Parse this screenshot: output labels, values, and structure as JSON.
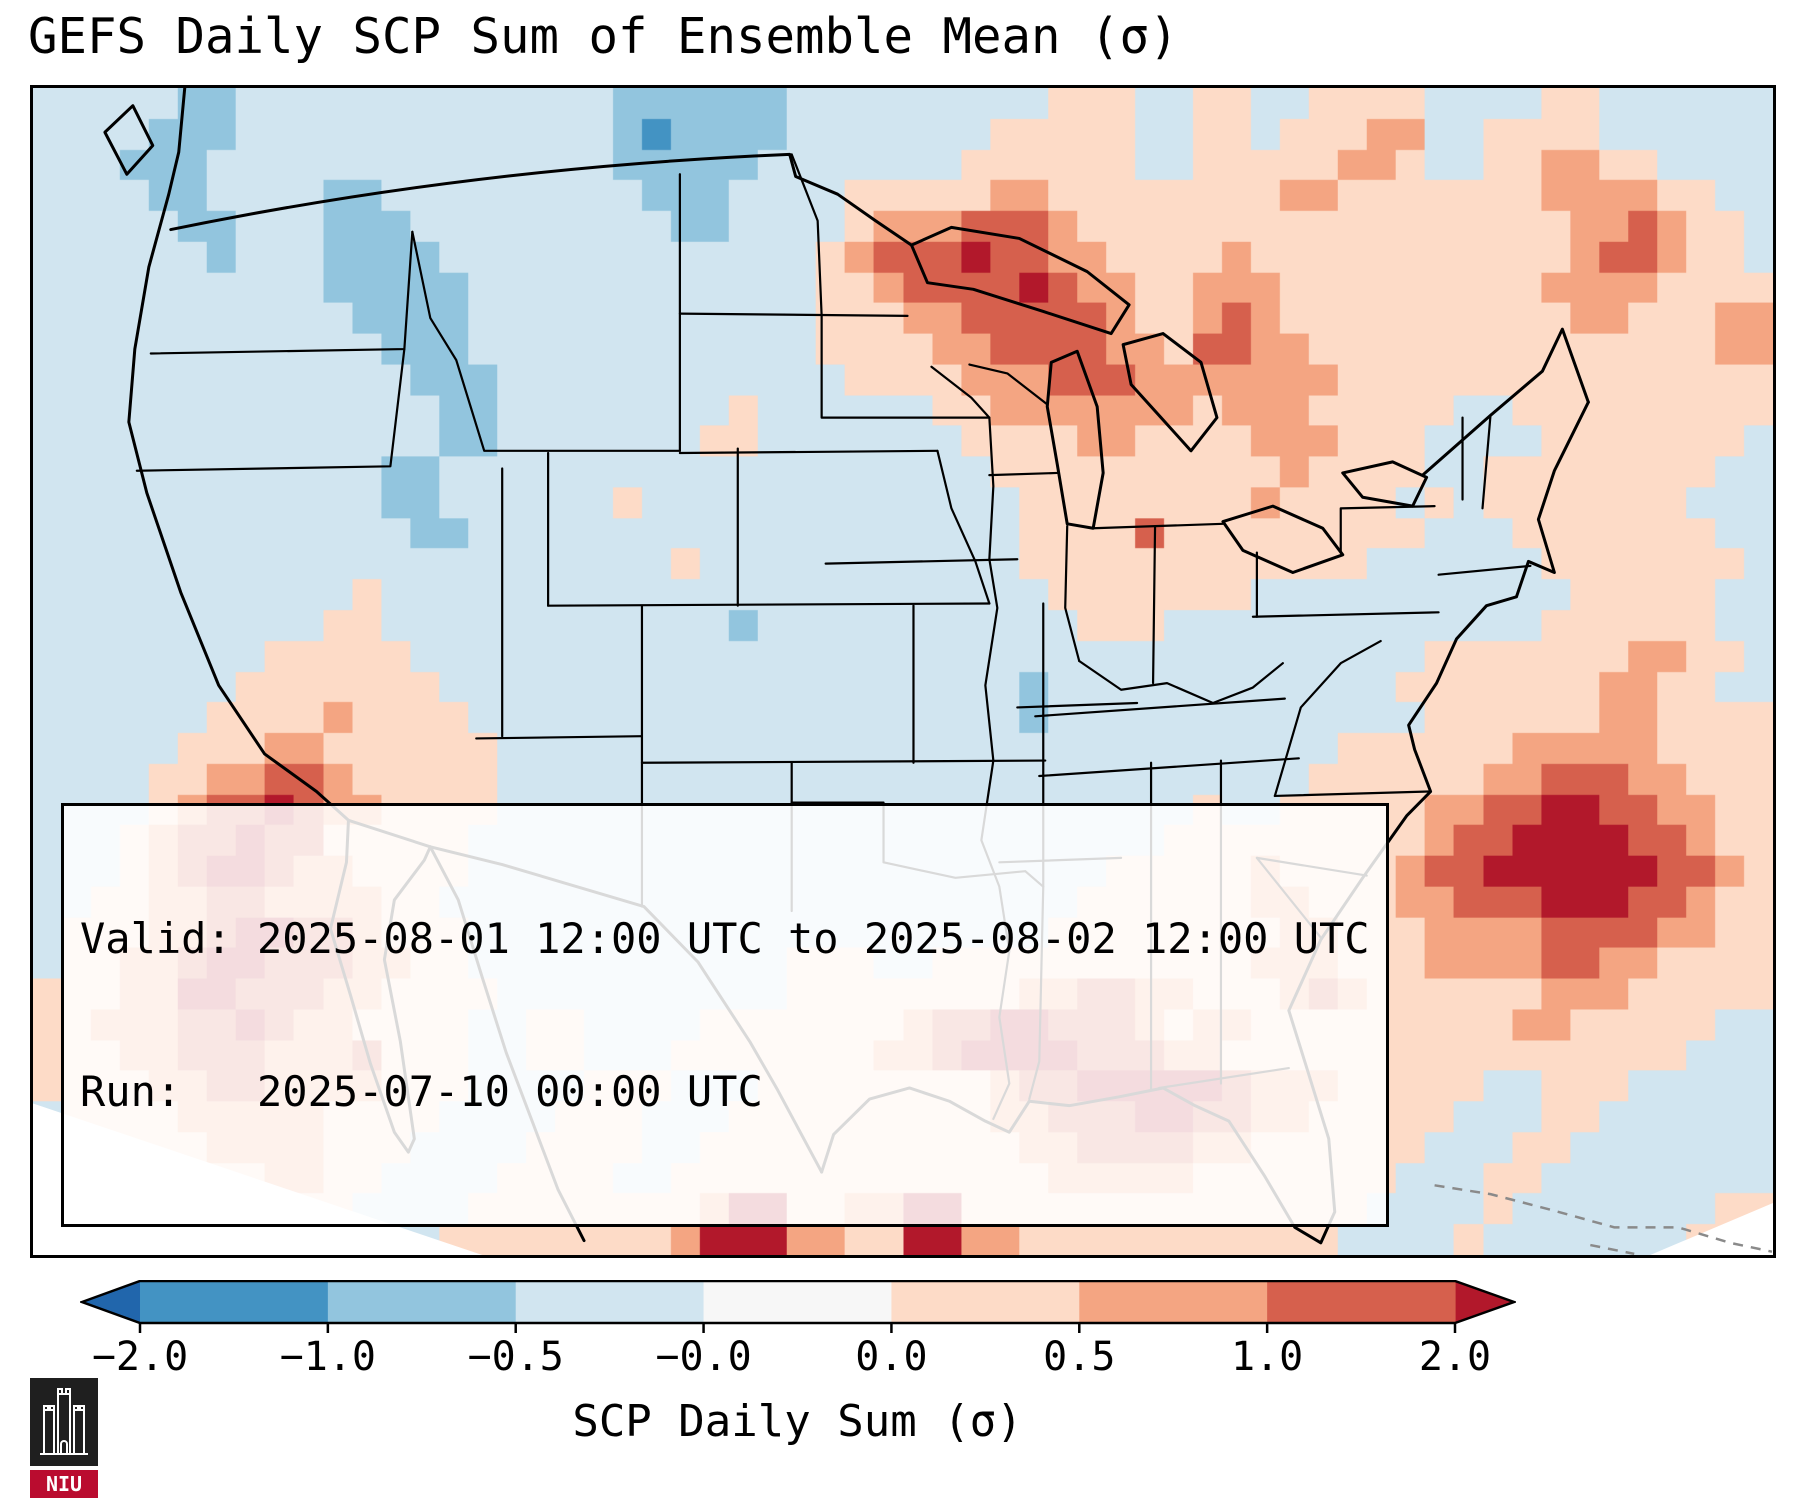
{
  "title": "GEFS Daily SCP Sum of Ensemble Mean (σ)",
  "info_box": {
    "line1": "Valid: 2025-08-01 12:00 UTC to 2025-08-02 12:00 UTC",
    "line2": "Run:   2025-07-10 00:00 UTC"
  },
  "colorbar": {
    "label": "SCP Daily Sum (σ)",
    "ticks": [
      "−2.0",
      "−1.0",
      "−0.5",
      "−0.0",
      "0.0",
      "0.5",
      "1.0",
      "2.0"
    ],
    "segment_colors": [
      "#4393c3",
      "#92c5de",
      "#d1e5f0",
      "#f7f7f7",
      "#fddbc7",
      "#f4a582",
      "#d6604d"
    ],
    "extend_left_color": "#2166ac",
    "extend_right_color": "#b2182b",
    "extend": "both"
  },
  "logo": {
    "text": "NIU"
  },
  "chart_data": {
    "type": "heatmap",
    "title": "GEFS Daily SCP Sum of Ensemble Mean (σ)",
    "colorbar_label": "SCP Daily Sum (σ)",
    "colorbar_ticks": [
      "−2.0",
      "−1.0",
      "−0.5",
      "−0.0",
      "0.0",
      "0.5",
      "1.0",
      "2.0"
    ],
    "levels": [
      -2.0,
      -1.0,
      -0.5,
      -0.0,
      0.0,
      0.5,
      1.0,
      2.0
    ],
    "legend_position": "bottom",
    "annotations": {
      "valid": "Valid: 2025-08-01 12:00 UTC to 2025-08-02 12:00 UTC",
      "run": "Run:   2025-07-10 00:00 UTC"
    },
    "colors": {
      "0": "#2166ac",
      "1": "#4393c3",
      "2": "#92c5de",
      "3": "#d1e5f0",
      "4": "#f7f7f7",
      "5": "#fddbc7",
      "6": "#f4a582",
      "7": "#d6604d",
      "8": "#b2182b"
    },
    "grid_cols": 60,
    "grid_rows": 38,
    "cells": [
      "333332233333333333332222223333333335553355335555333355333333",
      "333322233333333333332122223333333555553355355566335555333333",
      "333222333333333333332222233333335555553355555665335566553333",
      "333322333322333333333222333355555665555555566555555566665533",
      "333332233322233333333322333356667776555555555555555556676553",
      "333333233322223333333333333567778776655556555555555556776553",
      "333333333322222333333333333556777787665566655555555566665555",
      "333333333332222333333333333555667777765567655555555556655566",
      "333333333333222333333333333555566777766577665555555555555566",
      "333333333333322233333333333355556667776666666555555555555555",
      "333333333333332233333333533333355666666656665555533555555555",
      "333333333333332233333335533333335555665555666555333355555553",
      "333333333333223333333333333333333555555555565555335555555533",
      "333333333333223333335333333333333355555555655553535555555333",
      "333333333333322333333333333333333355557555555555333555555533",
      "333333333333333333333353333333333355555555555533333355555553",
      "333333333335333333333333333333333335555555333333333335555533",
      "333333333355333333333333233333333333555333333333333355555533",
      "333333335555533333333333333333333333333333333333555555566553",
      "333333355555553333333333333333333323333333333335555555665533",
      "333333555565555333333333333333333323333333333333555555665555",
      "333335556655555533333333333333333333333333333555555666665555",
      "333355667765555533333333333333333333333333335555556677766555",
      "333356778766555533333333333333333333333353355555667788776655",
      "333567787755555333333333333333333333333555555555677888877655",
      "333567887665555333333333333333333333355555655556778888887765",
      "335566776666553333333333333333333333555555665556677788877655",
      "355566788776555333333333333333333335555555566555666677776655",
      "355667887776655333333333335553355555555555666555666677665555",
      "555668877766555533333333335555555566776655567655555566655555",
      "556667787665555335533335555555677887776566555555555665555533",
      "555667776667555335533355555556678888777665555555555555555333",
      "555566776666555333355533355555555677888887666555553355533333",
      "355556666655553333555333555555555667778877665555533355333333",
      "335555666655533335555335555555555566777766555555333553333333",
      "333555556655333355553355555555555556666655555553335533333333",
      "333355555553333555555556885566885555555555555533335333333355",
      "333335555533335555555568886655886655555555555333353333333555"
    ]
  }
}
